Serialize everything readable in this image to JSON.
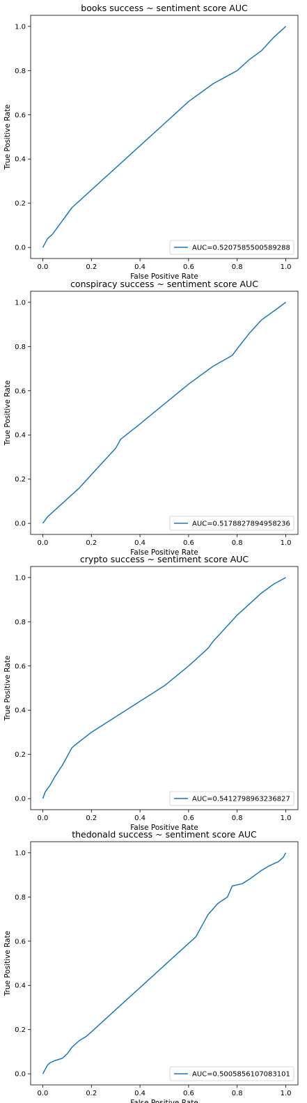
{
  "chart_data": [
    {
      "type": "line",
      "title": "books success ~ sentiment score AUC",
      "xlabel": "False Positive Rate",
      "ylabel": "True Positive Rate",
      "xlim": [
        -0.05,
        1.05
      ],
      "ylim": [
        -0.05,
        1.05
      ],
      "xticks": [
        "0.0",
        "0.2",
        "0.4",
        "0.6",
        "0.8",
        "1.0"
      ],
      "yticks": [
        "0.0",
        "0.2",
        "0.4",
        "0.6",
        "0.8",
        "1.0"
      ],
      "legend_position": "lower-right",
      "line_color": "#1f77b4",
      "series": [
        {
          "name": "AUC=0.5207585500589288",
          "x": [
            0.0,
            0.01,
            0.02,
            0.04,
            0.06,
            0.08,
            0.1,
            0.12,
            0.14,
            0.2,
            0.3,
            0.4,
            0.5,
            0.6,
            0.65,
            0.7,
            0.75,
            0.8,
            0.85,
            0.9,
            0.95,
            1.0
          ],
          "y": [
            0.0,
            0.02,
            0.04,
            0.06,
            0.09,
            0.12,
            0.15,
            0.18,
            0.2,
            0.26,
            0.36,
            0.46,
            0.56,
            0.66,
            0.7,
            0.74,
            0.77,
            0.8,
            0.85,
            0.89,
            0.95,
            1.0
          ]
        }
      ]
    },
    {
      "type": "line",
      "title": "conspiracy success ~ sentiment score AUC",
      "xlabel": "False Positive Rate",
      "ylabel": "True Positive Rate",
      "xlim": [
        -0.05,
        1.05
      ],
      "ylim": [
        -0.05,
        1.05
      ],
      "xticks": [
        "0.0",
        "0.2",
        "0.4",
        "0.6",
        "0.8",
        "1.0"
      ],
      "yticks": [
        "0.0",
        "0.2",
        "0.4",
        "0.6",
        "0.8",
        "1.0"
      ],
      "legend_position": "lower-right",
      "line_color": "#1f77b4",
      "series": [
        {
          "name": "AUC=0.5178827894958236",
          "x": [
            0.0,
            0.02,
            0.05,
            0.08,
            0.1,
            0.15,
            0.2,
            0.25,
            0.3,
            0.32,
            0.4,
            0.5,
            0.6,
            0.7,
            0.78,
            0.8,
            0.85,
            0.9,
            0.95,
            1.0
          ],
          "y": [
            0.0,
            0.03,
            0.06,
            0.09,
            0.11,
            0.16,
            0.22,
            0.28,
            0.34,
            0.38,
            0.45,
            0.54,
            0.63,
            0.71,
            0.76,
            0.79,
            0.86,
            0.92,
            0.96,
            1.0
          ]
        }
      ]
    },
    {
      "type": "line",
      "title": "crypto success ~ sentiment score AUC",
      "xlabel": "False Positive Rate",
      "ylabel": "True Positive Rate",
      "xlim": [
        -0.05,
        1.05
      ],
      "ylim": [
        -0.05,
        1.05
      ],
      "xticks": [
        "0.0",
        "0.2",
        "0.4",
        "0.6",
        "0.8",
        "1.0"
      ],
      "yticks": [
        "0.0",
        "0.2",
        "0.4",
        "0.6",
        "0.8",
        "1.0"
      ],
      "legend_position": "lower-right",
      "line_color": "#1f77b4",
      "series": [
        {
          "name": "AUC=0.5412798963236827",
          "x": [
            0.0,
            0.01,
            0.03,
            0.05,
            0.08,
            0.1,
            0.12,
            0.13,
            0.2,
            0.3,
            0.4,
            0.5,
            0.6,
            0.68,
            0.7,
            0.75,
            0.8,
            0.85,
            0.9,
            0.95,
            1.0
          ],
          "y": [
            0.0,
            0.03,
            0.06,
            0.1,
            0.15,
            0.19,
            0.23,
            0.24,
            0.3,
            0.37,
            0.44,
            0.51,
            0.6,
            0.68,
            0.71,
            0.77,
            0.83,
            0.88,
            0.93,
            0.97,
            1.0
          ]
        }
      ]
    },
    {
      "type": "line",
      "title": "thedonald success ~ sentiment score AUC",
      "xlabel": "False Positive Rate",
      "ylabel": "True Positive Rate",
      "xlim": [
        -0.05,
        1.05
      ],
      "ylim": [
        -0.05,
        1.05
      ],
      "xticks": [
        "0.0",
        "0.2",
        "0.4",
        "0.6",
        "0.8",
        "1.0"
      ],
      "yticks": [
        "0.0",
        "0.2",
        "0.4",
        "0.6",
        "0.8",
        "1.0"
      ],
      "legend_position": "lower-right",
      "line_color": "#1f77b4",
      "series": [
        {
          "name": "AUC=0.5005856107083101",
          "x": [
            0.0,
            0.01,
            0.02,
            0.03,
            0.05,
            0.08,
            0.1,
            0.12,
            0.15,
            0.18,
            0.2,
            0.3,
            0.4,
            0.5,
            0.6,
            0.63,
            0.65,
            0.68,
            0.72,
            0.76,
            0.78,
            0.82,
            0.85,
            0.9,
            0.93,
            0.97,
            0.99,
            1.0
          ],
          "y": [
            0.0,
            0.02,
            0.04,
            0.05,
            0.06,
            0.07,
            0.09,
            0.12,
            0.15,
            0.17,
            0.19,
            0.29,
            0.39,
            0.49,
            0.59,
            0.62,
            0.66,
            0.72,
            0.77,
            0.8,
            0.85,
            0.86,
            0.88,
            0.92,
            0.94,
            0.96,
            0.98,
            1.0
          ]
        }
      ]
    }
  ]
}
